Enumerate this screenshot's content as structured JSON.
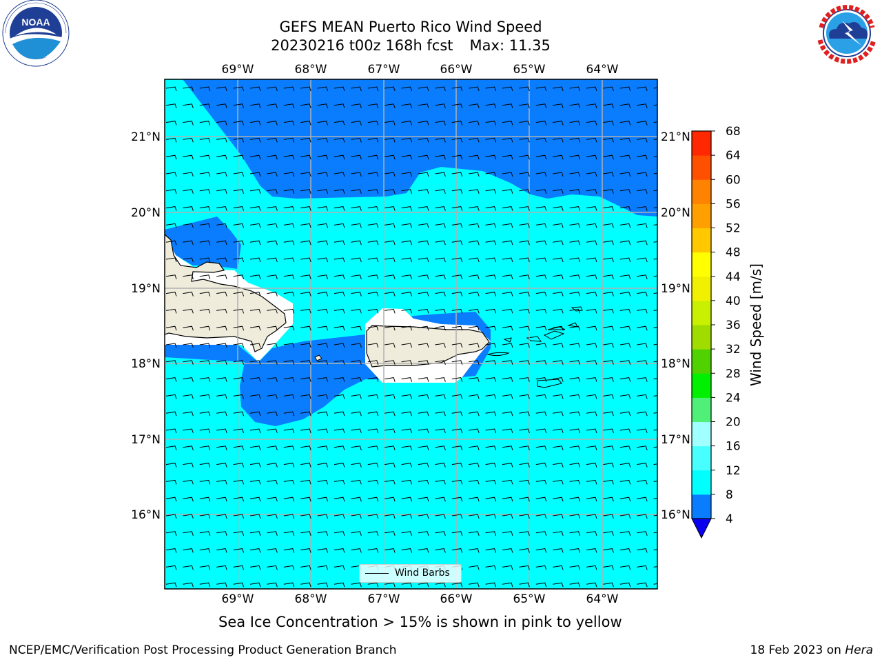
{
  "title": {
    "line1": "GEFS MEAN Puerto Rico Wind Speed",
    "line2_run": "20230216 t00z 168h fcst",
    "line2_max": "Max: 11.35"
  },
  "logos": {
    "left": {
      "name": "noaa-logo-icon",
      "text": "NOAA",
      "ring_text": "NATIONAL OCEANIC AND ATMOSPHERIC ADMINISTRATION · U.S. DEPARTMENT OF COMMERCE"
    },
    "right": {
      "name": "nws-logo-icon",
      "ring_text": "NATIONAL WEATHER SERVICE"
    }
  },
  "map": {
    "lon_labels": [
      "69°W",
      "68°W",
      "67°W",
      "66°W",
      "65°W",
      "64°W"
    ],
    "lat_labels": [
      "21°N",
      "20°N",
      "19°N",
      "18°N",
      "17°N",
      "16°N"
    ],
    "land_color": "#efecdc",
    "ocean_low_color": "#0a7dff",
    "ocean_mid_color": "#00ffff"
  },
  "legend": {
    "wind_barbs_label": "Wind Barbs"
  },
  "colorbar": {
    "label": "Wind Speed [m/s]",
    "ticks": [
      "4",
      "8",
      "12",
      "16",
      "20",
      "24",
      "28",
      "32",
      "36",
      "40",
      "44",
      "48",
      "52",
      "56",
      "60",
      "64",
      "68"
    ],
    "colors": [
      "#0a7dff",
      "#00ffff",
      "#48ffff",
      "#a0ffff",
      "#50f078",
      "#00f000",
      "#50d200",
      "#a0dc00",
      "#c8f000",
      "#f0f000",
      "#ffff00",
      "#ffc800",
      "#ffa000",
      "#ff8200",
      "#ff5000",
      "#ff2800",
      "#ff0000"
    ],
    "extend_color": "#0a00f0"
  },
  "caption": "Sea Ice Concentration > 15% is shown in pink to yellow",
  "footer": {
    "left": "NCEP/EMC/Verification Post Processing Product Generation Branch",
    "right_date": "18 Feb 2023 on ",
    "right_host": "Hera"
  }
}
